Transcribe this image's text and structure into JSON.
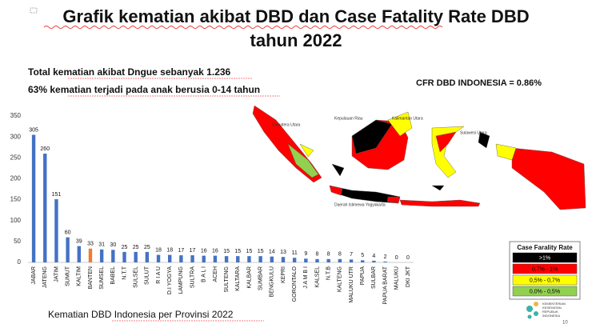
{
  "chart_data": {
    "type": "bar",
    "title_lines": [
      "Grafik kematian akibat DBD dan Case Fatality Rate DBD",
      "tahun 2022"
    ],
    "notes": [
      "Total kematian akibat Dngue sebanyak 1.236",
      "63% kematian terjadi pada anak berusia 0-14 tahun"
    ],
    "caption": "Kematian DBD Indonesia per Provinsi 2022",
    "categories": [
      "JABAR",
      "JATENG",
      "JATIM",
      "SUMUT",
      "KALTIM",
      "BANTEN",
      "SUMSEL",
      "BABEL",
      "N.T.T",
      "SULSEL",
      "SULUT",
      "R I A U",
      "D.I YOGYA",
      "LAMPUNG",
      "SULTRA",
      "B A L I",
      "ACEH",
      "SULTENG",
      "KALTARA",
      "KALBAR",
      "SUMBAR",
      "BENGKULU",
      "KEPRI",
      "GORONTALO",
      "J A M B I",
      "KALSEL",
      "N.T.B",
      "KALTENG",
      "MALUKU UTR",
      "PAPUA",
      "SULBAR",
      "PAPUA BARAT",
      "MALUKU",
      "DKI JKT"
    ],
    "values": [
      305,
      260,
      151,
      60,
      39,
      33,
      31,
      30,
      25,
      25,
      25,
      18,
      18,
      17,
      17,
      16,
      16,
      15,
      15,
      15,
      15,
      14,
      13,
      11,
      9,
      8,
      8,
      8,
      7,
      5,
      4,
      2,
      0,
      0
    ],
    "colors": [
      "#4472c4",
      "#4472c4",
      "#4472c4",
      "#4472c4",
      "#4472c4",
      "#ed7d31",
      "#4472c4",
      "#4472c4",
      "#4472c4",
      "#4472c4",
      "#4472c4",
      "#4472c4",
      "#4472c4",
      "#4472c4",
      "#4472c4",
      "#4472c4",
      "#4472c4",
      "#4472c4",
      "#4472c4",
      "#4472c4",
      "#4472c4",
      "#4472c4",
      "#4472c4",
      "#4472c4",
      "#4472c4",
      "#4472c4",
      "#4472c4",
      "#4472c4",
      "#4472c4",
      "#4472c4",
      "#4472c4",
      "#4472c4",
      "#4472c4",
      "#4472c4"
    ],
    "ylim": [
      0,
      350
    ],
    "yticks": [
      0,
      50,
      100,
      150,
      200,
      250,
      300,
      350
    ],
    "grid": false
  },
  "map": {
    "cfr_text": "CFR DBD INDONESIA = 0.86%",
    "labels": [
      "Kepulauan Riau",
      "Sumatera Utara",
      "Kalimantan Utara",
      "Sulawesi Utara",
      "Daerah Istimewa Yogyakarta"
    ],
    "legend": {
      "title": "Case Farality Rate",
      "items": [
        {
          "label": ">1%",
          "color": "#000000",
          "text_color": "#ffffff"
        },
        {
          "label": "0,7% - 1%",
          "color": "#ff0000",
          "text_color": "#000000"
        },
        {
          "label": "0,5% - 0,7%",
          "color": "#ffff00",
          "text_color": "#000000"
        },
        {
          "label": "0,0% - 0,5%",
          "color": "#92d050",
          "text_color": "#000000"
        }
      ]
    }
  },
  "footer": {
    "logo_text": [
      "KEMENTERIAN",
      "KESEHATAN",
      "REPUBLIK",
      "INDONESIA"
    ],
    "page": "10"
  }
}
